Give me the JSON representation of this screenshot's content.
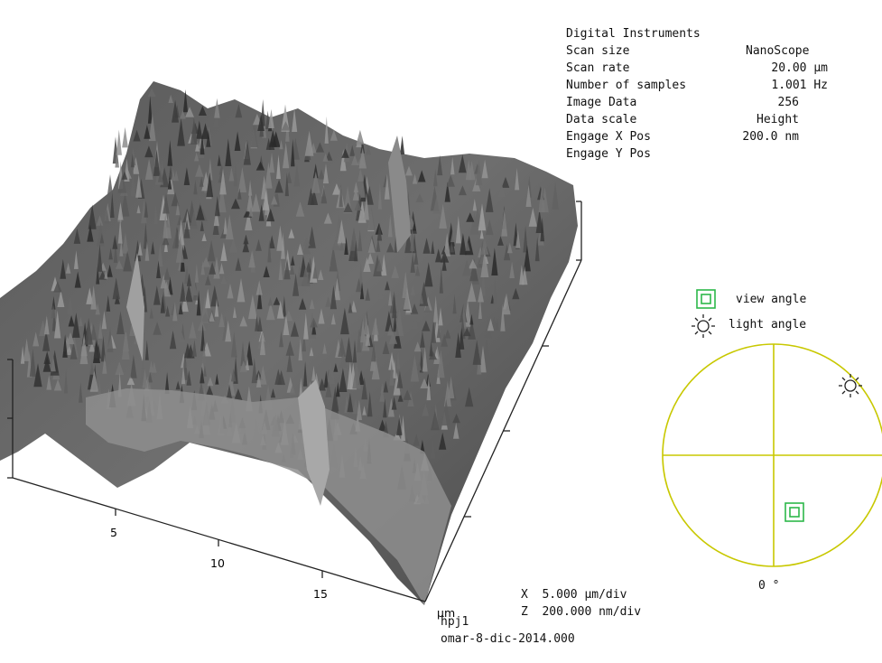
{
  "info": {
    "title_left": "Digital Instruments",
    "title_right": "NanoScope",
    "rows": [
      {
        "label": "Scan size",
        "value": "20.00 µm"
      },
      {
        "label": "Scan rate",
        "value": "1.001 Hz"
      },
      {
        "label": "Number of samples",
        "value": "256"
      },
      {
        "label": "Image Data",
        "value": "Height"
      },
      {
        "label": "Data scale",
        "value": "200.0 nm"
      },
      {
        "label": "Engage X Pos",
        "value": ""
      },
      {
        "label": "Engage Y Pos",
        "value": ""
      }
    ]
  },
  "legend": {
    "view_angle": "view angle",
    "light_angle": "light angle",
    "angle_value": "0 °"
  },
  "scale": {
    "x_div": "X  5.000 µm/div",
    "z_div": "Z  200.000 nm/div"
  },
  "file": {
    "name": "hpj1",
    "date": "omar-8-dic-2014.000"
  },
  "chart_data": {
    "type": "surface",
    "xlabel": "µm",
    "x_ticks": [
      "5",
      "10",
      "15"
    ],
    "x_tick_values": [
      5,
      10,
      15
    ],
    "x_range": [
      0,
      20
    ],
    "y_range": [
      0,
      20
    ],
    "z_range_nm": [
      0,
      200
    ],
    "grid": false,
    "colors": {
      "surface_dark": "#3a3a3a",
      "surface_light": "#9a9a9a",
      "compass": "#c8c800",
      "view_marker": "#2db84a"
    }
  }
}
